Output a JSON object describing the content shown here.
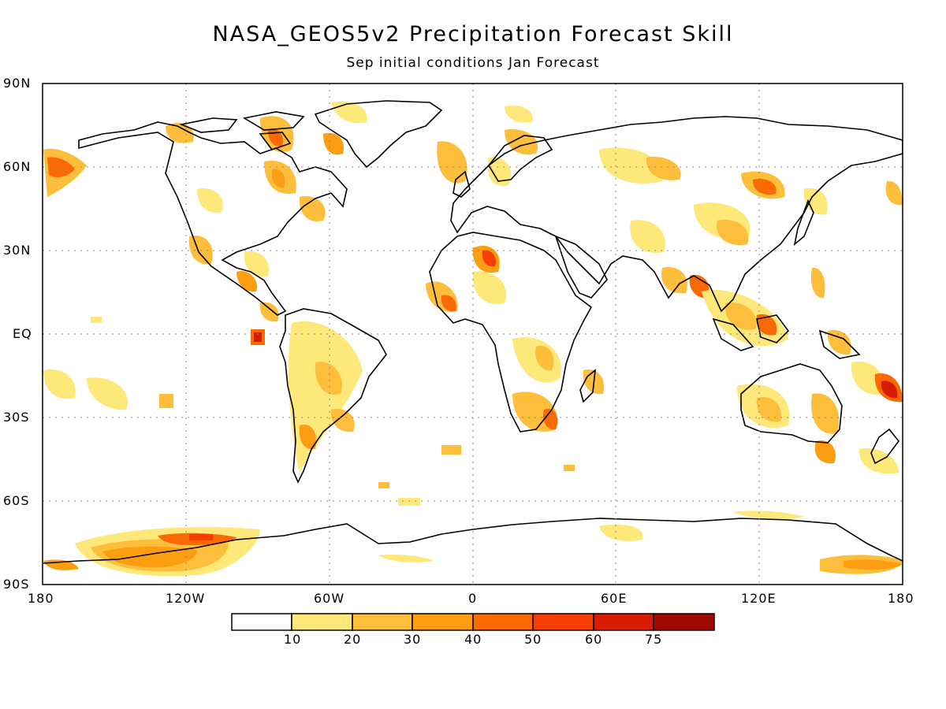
{
  "title": "NASA_GEOS5v2 Precipitation Forecast Skill",
  "subtitle": "Sep initial conditions   Jan Forecast",
  "lat_labels": [
    "90N",
    "60N",
    "30N",
    "EQ",
    "30S",
    "60S",
    "90S"
  ],
  "lon_labels": [
    "180",
    "120W",
    "60W",
    "0",
    "60E",
    "120E",
    "180"
  ],
  "colorbar": {
    "labels": [
      "10",
      "20",
      "30",
      "40",
      "50",
      "60",
      "75"
    ],
    "colors": [
      "#ffffff",
      "#fee87a",
      "#fdbe3c",
      "#fc9d12",
      "#fa6a04",
      "#f53d04",
      "#d81b04",
      "#a00a04"
    ]
  }
}
